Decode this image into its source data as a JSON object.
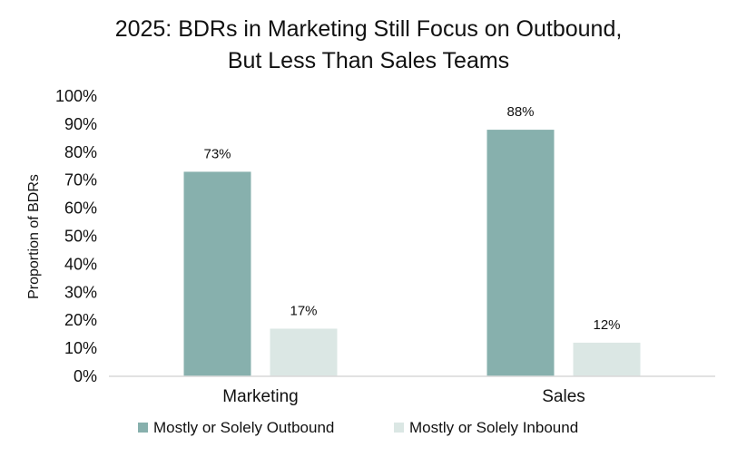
{
  "chart_data": {
    "type": "bar",
    "title_lines": [
      "2025: BDRs in Marketing Still Focus on Outbound,",
      "But Less Than Sales Teams"
    ],
    "ylabel": "Proportion of BDRs",
    "xlabel": "",
    "categories": [
      "Marketing",
      "Sales"
    ],
    "series": [
      {
        "name": "Mostly or Solely Outbound",
        "color": "#87b0ad",
        "values": [
          73,
          88
        ],
        "data_labels": [
          "73%",
          "88%"
        ]
      },
      {
        "name": "Mostly or Solely Inbound",
        "color": "#dbe7e4",
        "values": [
          17,
          12
        ],
        "data_labels": [
          "17%",
          "12%"
        ]
      }
    ],
    "ylim": [
      0,
      100
    ],
    "y_ticks": [
      0,
      10,
      20,
      30,
      40,
      50,
      60,
      70,
      80,
      90,
      100
    ],
    "y_tick_labels": [
      "0%",
      "10%",
      "20%",
      "30%",
      "40%",
      "50%",
      "60%",
      "70%",
      "80%",
      "90%",
      "100%"
    ],
    "grid": false,
    "legend_position": "bottom",
    "axis_color": "#d9d9d9"
  }
}
